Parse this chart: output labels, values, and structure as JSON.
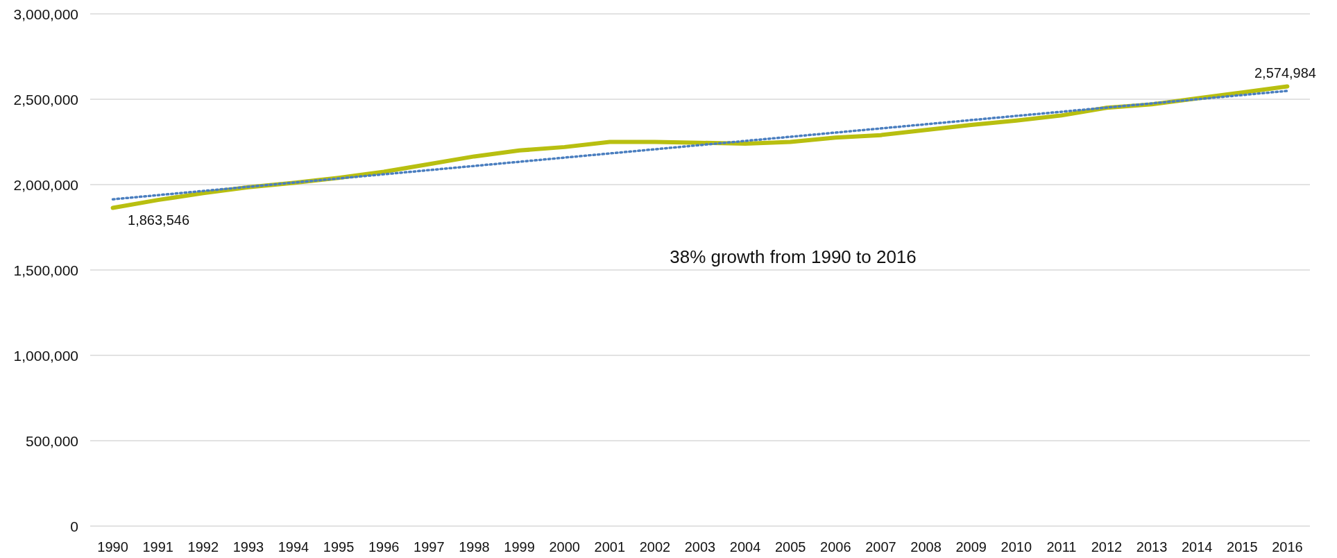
{
  "chart_data": {
    "type": "line",
    "x": [
      1990,
      1991,
      1992,
      1993,
      1994,
      1995,
      1996,
      1997,
      1998,
      1999,
      2000,
      2001,
      2002,
      2003,
      2004,
      2005,
      2006,
      2007,
      2008,
      2009,
      2010,
      2011,
      2012,
      2013,
      2014,
      2015,
      2016
    ],
    "series": [
      {
        "color": "#b8bf10",
        "line_style": "solid",
        "values": [
          1863546,
          1910000,
          1950000,
          1985000,
          2010000,
          2040000,
          2075000,
          2120000,
          2165000,
          2200000,
          2220000,
          2250000,
          2250000,
          2245000,
          2240000,
          2250000,
          2275000,
          2290000,
          2320000,
          2350000,
          2375000,
          2405000,
          2450000,
          2470000,
          2505000,
          2540000,
          2574984
        ],
        "value_labels": [
          "1,863,546",
          null,
          null,
          null,
          null,
          null,
          null,
          null,
          null,
          null,
          null,
          null,
          null,
          null,
          null,
          null,
          null,
          null,
          null,
          null,
          null,
          null,
          null,
          null,
          null,
          null,
          "2,574,984"
        ]
      },
      {
        "type": "line",
        "color": "#4a7ebf",
        "line_style": "dotted",
        "x": [
          1990,
          2016
        ],
        "values": [
          1914000,
          2549000
        ]
      }
    ],
    "xlim": [
      1989.5,
      2016.5
    ],
    "xticks": [
      1990,
      1991,
      1992,
      1993,
      1994,
      1995,
      1996,
      1997,
      1998,
      1999,
      2000,
      2001,
      2002,
      2003,
      2004,
      2005,
      2006,
      2007,
      2008,
      2009,
      2010,
      2011,
      2012,
      2013,
      2014,
      2015,
      2016
    ],
    "ylim": [
      0,
      3000000
    ],
    "yticks": [
      0,
      {
        "value": 500000,
        "label": "500,000"
      },
      {
        "value": 1000000,
        "label": "1,000,000"
      },
      {
        "value": 1500000,
        "label": "1,500,000"
      },
      {
        "value": 2000000,
        "label": "2,000,000"
      },
      {
        "value": 2500000,
        "label": "2,500,000"
      },
      {
        "value": 3000000,
        "label": "3,000,000"
      }
    ],
    "grid": "y",
    "marker": "none",
    "annotations": [
      "38% growth from 1990 to 2016"
    ]
  }
}
